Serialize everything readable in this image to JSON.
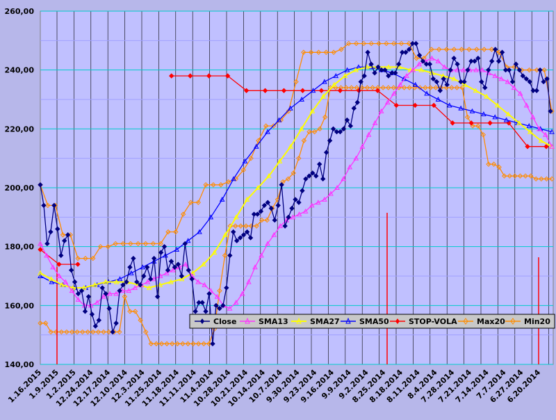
{
  "chart_data": {
    "type": "line",
    "title": "",
    "xlabel": "",
    "ylabel": "",
    "x_order": "descending-dates",
    "ylim": [
      140,
      260
    ],
    "y_ticks": [
      "140,00",
      "160,00",
      "180,00",
      "200,00",
      "220,00",
      "240,00",
      "260,00"
    ],
    "grid": true,
    "legend_position": "bottom-right",
    "x_tick_labels": [
      "1.16.2015",
      "1.9.2015",
      "1.2.2015",
      "12.24.2014",
      "12.17.2014",
      "12.10.2014",
      "12.3.2014",
      "11.25.2014",
      "11.18.2014",
      "11.11.2014",
      "11.4.2014",
      "10.28.2014",
      "10.21.2014",
      "10.14.2014",
      "10.7.2014",
      "9.30.2014",
      "9.23.2014",
      "9.16.2014",
      "9.9.2014",
      "9.2.2014",
      "8.25.2014",
      "8.18.2014",
      "8.11.2014",
      "8.4.2014",
      "7.28.2014",
      "7.21.2014",
      "7.14.2014",
      "7.7.2014",
      "6.27.2014",
      "6.20.2014"
    ],
    "series": [
      {
        "name": "Close",
        "color": "#000080",
        "marker": "diamond",
        "values": [
          201,
          194,
          181,
          185,
          194,
          186,
          177,
          182,
          184,
          172,
          168,
          164,
          165,
          158,
          163,
          157,
          153,
          155,
          166,
          164,
          159,
          151,
          154,
          165,
          167,
          168,
          173,
          176,
          168,
          167,
          170,
          173,
          169,
          176,
          163,
          178,
          180,
          172,
          175,
          173,
          174,
          170,
          181,
          172,
          169,
          158,
          161,
          161,
          158,
          164,
          147,
          160,
          159,
          160,
          166,
          177,
          185,
          182,
          183,
          184,
          185,
          183,
          191,
          191,
          192,
          194,
          195,
          193,
          189,
          194,
          201,
          187,
          190,
          193,
          196,
          195,
          199,
          203,
          204,
          205,
          204,
          208,
          203,
          212,
          216,
          220,
          219,
          219,
          220,
          223,
          221,
          227,
          229,
          236,
          238,
          246,
          242,
          239,
          241,
          240,
          240,
          238,
          239,
          239,
          242,
          246,
          246,
          247,
          249,
          249,
          245,
          243,
          242,
          242,
          237,
          236,
          233,
          237,
          235,
          240,
          244,
          242,
          236,
          236,
          240,
          243,
          243,
          244,
          236,
          234,
          240,
          243,
          247,
          243,
          246,
          240,
          240,
          236,
          242,
          240,
          238,
          237,
          236,
          233,
          233,
          240,
          236,
          237,
          226
        ]
      },
      {
        "name": "SMA13",
        "color": "#ff33ff",
        "marker": "triangle",
        "values": [
          181,
          177,
          173,
          170,
          168,
          165,
          162,
          160,
          160,
          161,
          163,
          164,
          164,
          165,
          165,
          166,
          167,
          168,
          169,
          170,
          171,
          172,
          173,
          174,
          170,
          168,
          167,
          165,
          163,
          160,
          159,
          161,
          164,
          168,
          173,
          177,
          181,
          184,
          187,
          189,
          190,
          191,
          192,
          194,
          195,
          196,
          198,
          200,
          203,
          207,
          210,
          214,
          218,
          222,
          226,
          229,
          232,
          235,
          238,
          240,
          242,
          243,
          244,
          243,
          241,
          240,
          240,
          240,
          240,
          240,
          240,
          239,
          238,
          237,
          236,
          234,
          232,
          228,
          224,
          220,
          218,
          214
        ]
      },
      {
        "name": "SMA27",
        "color": "#ffff00",
        "marker": "triangle",
        "values": [
          171,
          169,
          167,
          166,
          166,
          167,
          168,
          168,
          168,
          167,
          166,
          167,
          168,
          169,
          171,
          174,
          178,
          184,
          190,
          196,
          200,
          204,
          209,
          214,
          220,
          226,
          231,
          235,
          238,
          240,
          241,
          241,
          241,
          241,
          240,
          240,
          239,
          238,
          237,
          235,
          233,
          231,
          228,
          225,
          222,
          219,
          216,
          214
        ]
      },
      {
        "name": "SMA50",
        "color": "#0000ff",
        "marker": "triangle",
        "values": [
          170,
          168,
          167,
          166,
          166,
          167,
          168,
          169,
          171,
          173,
          175,
          177,
          179,
          182,
          185,
          190,
          196,
          203,
          209,
          214,
          219,
          223,
          227,
          230,
          233,
          236,
          238,
          240,
          241,
          241,
          240,
          239,
          237,
          235,
          232,
          230,
          228,
          227,
          226,
          225,
          224,
          223,
          222,
          221,
          220,
          219
        ]
      },
      {
        "name": "STOP-VOLA",
        "color": "#ff0000",
        "marker": "diamond",
        "values": [
          179,
          174,
          174,
          null,
          null,
          null,
          null,
          238,
          238,
          238,
          238,
          233,
          233,
          233,
          233,
          233,
          233,
          233,
          233,
          228,
          228,
          228,
          222,
          222,
          222,
          222,
          214,
          214
        ]
      },
      {
        "name": "Max20",
        "color": "#ff8c00",
        "marker": "diamond",
        "values": [
          201,
          194,
          194,
          184,
          184,
          176,
          176,
          176,
          180,
          180,
          181,
          181,
          181,
          181,
          181,
          181,
          181,
          185,
          185,
          191,
          195,
          195,
          201,
          201,
          201,
          202,
          203,
          206,
          210,
          216,
          221,
          221,
          223,
          226,
          236,
          246,
          246,
          246,
          246,
          246,
          247,
          249,
          249,
          249,
          249,
          249,
          249,
          249,
          249,
          249,
          244,
          244,
          247,
          247,
          247,
          247,
          247,
          247,
          247,
          247,
          247,
          246,
          241,
          241,
          240,
          240,
          240,
          240,
          226
        ]
      },
      {
        "name": "Min20",
        "color": "#ff8c00",
        "marker": "diamond",
        "values": [
          154,
          154,
          151,
          151,
          151,
          151,
          151,
          151,
          151,
          151,
          151,
          151,
          151,
          151,
          151,
          151,
          163,
          158,
          158,
          155,
          151,
          147,
          147,
          147,
          147,
          147,
          147,
          147,
          147,
          147,
          147,
          147,
          147,
          152,
          165,
          177,
          187,
          187,
          187,
          187,
          187,
          187,
          189,
          189,
          193,
          196,
          202,
          203,
          205,
          210,
          216,
          219,
          219,
          220,
          224,
          234,
          234,
          234,
          234,
          234,
          234,
          234,
          234,
          234,
          234,
          234,
          234,
          234,
          234,
          234,
          234,
          234,
          234,
          234,
          234,
          234,
          234,
          234,
          234,
          234,
          234,
          224,
          221,
          221,
          218,
          208,
          208,
          207,
          204,
          204,
          204,
          204,
          204,
          204,
          203,
          203,
          203,
          203
        ]
      }
    ]
  }
}
